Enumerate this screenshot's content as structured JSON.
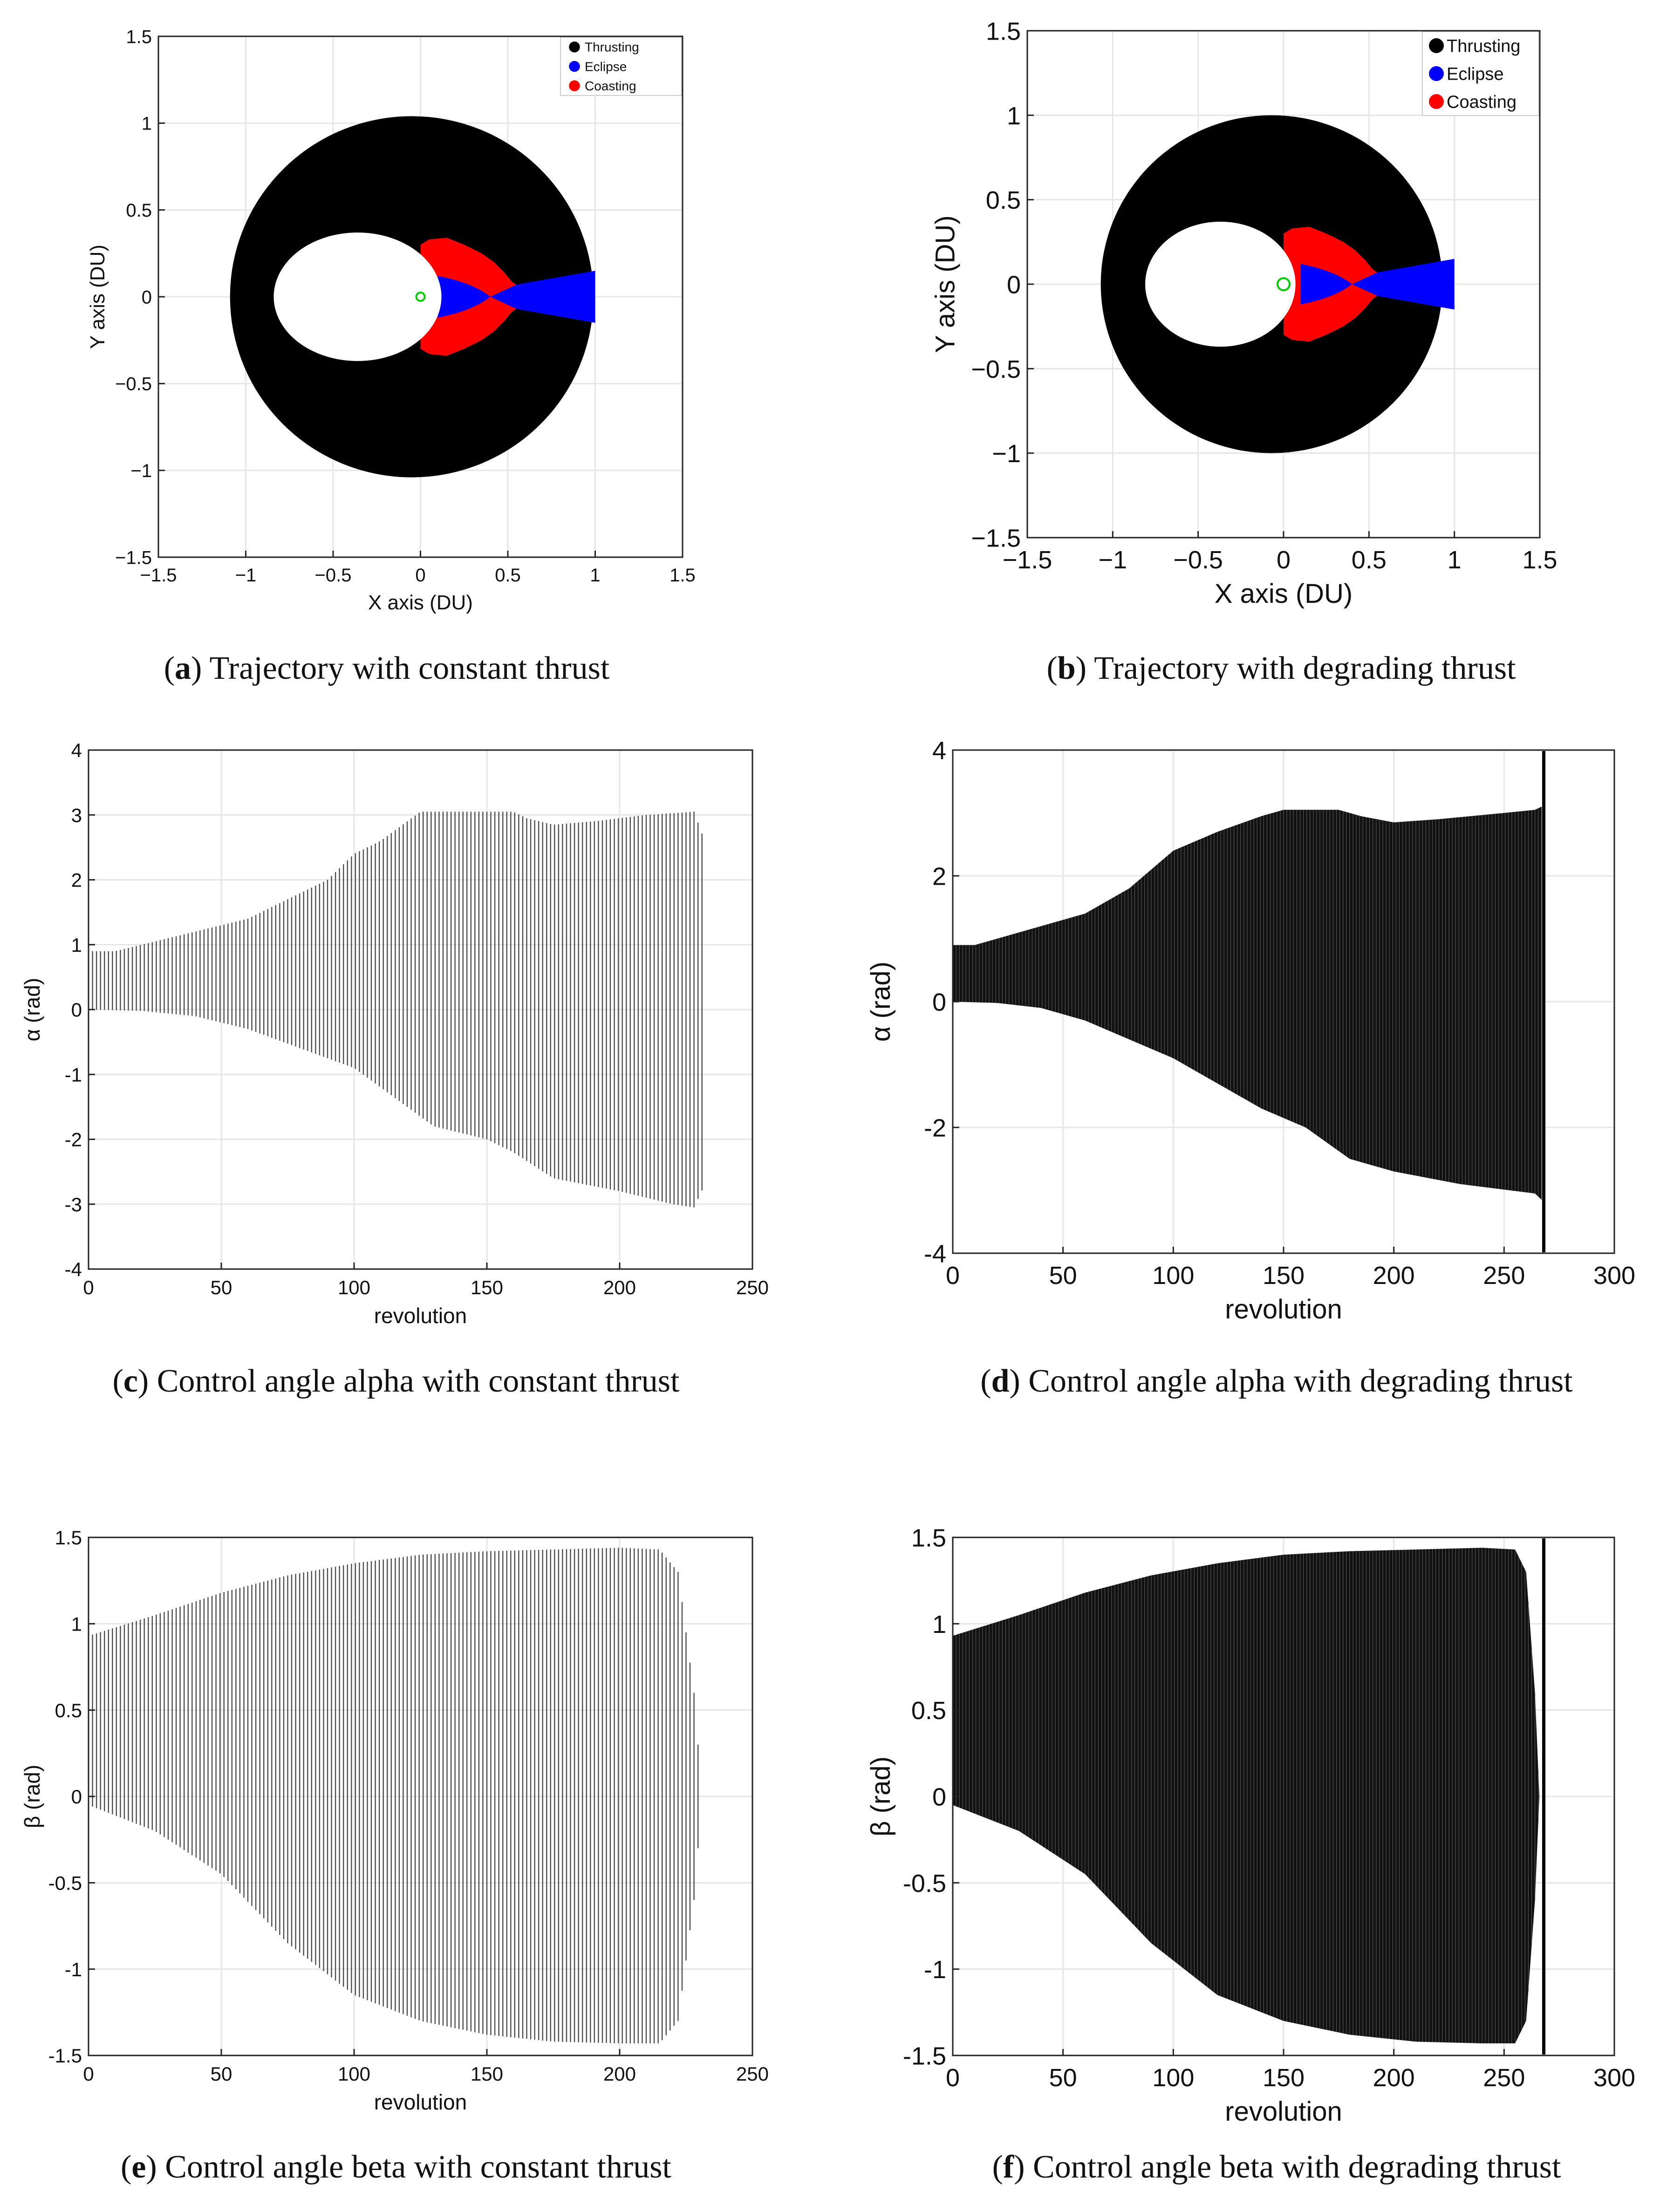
{
  "colors": {
    "thrust": "#000000",
    "eclipse": "#0000ff",
    "coast": "#ff0000",
    "center": "#00cc00",
    "grid": "#e6e6e6",
    "light_fill": "#4a4a4a"
  },
  "captions": {
    "a": {
      "letter": "a",
      "text": " Trajectory with constant thrust"
    },
    "b": {
      "letter": "b",
      "text": " Trajectory with degrading thrust"
    },
    "c": {
      "letter": "c",
      "text": " Control angle alpha with constant thrust"
    },
    "d": {
      "letter": "d",
      "text": " Control angle alpha with degrading thrust"
    },
    "e": {
      "letter": "e",
      "text": " Control angle beta with constant thrust"
    },
    "f": {
      "letter": "f",
      "text": " Control angle beta with degrading thrust"
    }
  },
  "chart_data": [
    {
      "id": "a",
      "type": "scatter",
      "title": "",
      "xlabel": "X axis (DU)",
      "ylabel": "Y axis (DU)",
      "xlim": [
        -1.5,
        1.5
      ],
      "ylim": [
        -1.5,
        1.5
      ],
      "xticks": [
        -1.5,
        -1,
        -0.5,
        0,
        0.5,
        1,
        1.5
      ],
      "yticks": [
        -1.5,
        -1,
        -0.5,
        0,
        0.5,
        1,
        1.5
      ],
      "xtick_labels": [
        "−1.5",
        "−1",
        "−0.5",
        "0",
        "0.5",
        "1",
        "1.5"
      ],
      "ytick_labels": [
        "−1.5",
        "−1",
        "−0.5",
        "0",
        "0.5",
        "1",
        "1.5"
      ],
      "legend": [
        "Thrusting",
        "Eclipse",
        "Coasting"
      ],
      "legend_position": "top-right",
      "grid": true,
      "orbit": {
        "outer_center": [
          -0.05,
          0
        ],
        "outer_radius": 1.04,
        "inner_center": [
          -0.36,
          0
        ],
        "inner_rx": 0.48,
        "inner_ry": 0.37,
        "center_point": [
          0,
          0
        ]
      }
    },
    {
      "id": "b",
      "type": "scatter",
      "title": "",
      "xlabel": "X axis (DU)",
      "ylabel": "Y axis (DU)",
      "xlim": [
        -1.5,
        1.5
      ],
      "ylim": [
        -1.5,
        1.5
      ],
      "xticks": [
        -1.5,
        -1,
        -0.5,
        0,
        0.5,
        1,
        1.5
      ],
      "yticks": [
        -1.5,
        -1,
        -0.5,
        0,
        0.5,
        1,
        1.5
      ],
      "xtick_labels": [
        "−1.5",
        "−1",
        "−0.5",
        "0",
        "0.5",
        "1",
        "1.5"
      ],
      "ytick_labels": [
        "−1.5",
        "−1",
        "−0.5",
        "0",
        "0.5",
        "1",
        "1.5"
      ],
      "legend": [
        "Thrusting",
        "Eclipse",
        "Coasting"
      ],
      "legend_position": "top-right",
      "grid": true,
      "orbit": {
        "outer_center": [
          -0.07,
          0
        ],
        "outer_radius": 1.0,
        "inner_center": [
          -0.37,
          0
        ],
        "inner_rx": 0.44,
        "inner_ry": 0.37,
        "center_point": [
          0,
          0
        ]
      }
    },
    {
      "id": "c",
      "type": "line",
      "title": "",
      "xlabel": "revolution",
      "ylabel": "α (rad)",
      "xlim": [
        0,
        250
      ],
      "ylim": [
        -4,
        4
      ],
      "xticks": [
        0,
        50,
        100,
        150,
        200,
        250
      ],
      "yticks": [
        -4,
        -3,
        -2,
        -1,
        0,
        1,
        2,
        3,
        4
      ],
      "xtick_labels": [
        "0",
        "50",
        "100",
        "150",
        "200",
        "250"
      ],
      "ytick_labels": [
        "-4",
        "-3",
        "-2",
        "-1",
        "0",
        "1",
        "2",
        "3",
        "4"
      ],
      "grid": true,
      "style": "light",
      "end_revolution": 232,
      "upper_envelope": [
        [
          0,
          0.9
        ],
        [
          10,
          0.9
        ],
        [
          20,
          1.0
        ],
        [
          30,
          1.1
        ],
        [
          40,
          1.2
        ],
        [
          50,
          1.3
        ],
        [
          60,
          1.4
        ],
        [
          70,
          1.6
        ],
        [
          80,
          1.8
        ],
        [
          90,
          2.0
        ],
        [
          100,
          2.4
        ],
        [
          110,
          2.6
        ],
        [
          120,
          2.9
        ],
        [
          125,
          3.05
        ],
        [
          160,
          3.05
        ],
        [
          165,
          2.95
        ],
        [
          175,
          2.85
        ],
        [
          190,
          2.9
        ],
        [
          210,
          3.0
        ],
        [
          228,
          3.05
        ],
        [
          232,
          2.6
        ]
      ],
      "lower_envelope": [
        [
          0,
          0.0
        ],
        [
          20,
          -0.02
        ],
        [
          40,
          -0.1
        ],
        [
          60,
          -0.3
        ],
        [
          80,
          -0.6
        ],
        [
          100,
          -0.9
        ],
        [
          110,
          -1.2
        ],
        [
          120,
          -1.5
        ],
        [
          130,
          -1.8
        ],
        [
          150,
          -2.0
        ],
        [
          160,
          -2.2
        ],
        [
          175,
          -2.6
        ],
        [
          200,
          -2.8
        ],
        [
          220,
          -3.0
        ],
        [
          228,
          -3.05
        ],
        [
          232,
          -2.7
        ]
      ]
    },
    {
      "id": "d",
      "type": "line",
      "title": "",
      "xlabel": "revolution",
      "ylabel": "α (rad)",
      "xlim": [
        0,
        300
      ],
      "ylim": [
        -4,
        4
      ],
      "xticks": [
        0,
        50,
        100,
        150,
        200,
        250,
        300
      ],
      "yticks": [
        -4,
        -2,
        0,
        2,
        4
      ],
      "xtick_labels": [
        "0",
        "50",
        "100",
        "150",
        "200",
        "250",
        "300"
      ],
      "ytick_labels": [
        "-4",
        "-2",
        "0",
        "2",
        "4"
      ],
      "grid": true,
      "style": "dark",
      "end_revolution": 267,
      "upper_envelope": [
        [
          0,
          0.9
        ],
        [
          10,
          0.9
        ],
        [
          20,
          1.0
        ],
        [
          30,
          1.1
        ],
        [
          40,
          1.2
        ],
        [
          50,
          1.3
        ],
        [
          60,
          1.4
        ],
        [
          70,
          1.6
        ],
        [
          80,
          1.8
        ],
        [
          100,
          2.4
        ],
        [
          120,
          2.7
        ],
        [
          140,
          2.95
        ],
        [
          150,
          3.05
        ],
        [
          175,
          3.05
        ],
        [
          185,
          2.95
        ],
        [
          200,
          2.85
        ],
        [
          220,
          2.9
        ],
        [
          250,
          3.0
        ],
        [
          264,
          3.05
        ],
        [
          267,
          3.1
        ]
      ],
      "lower_envelope": [
        [
          0,
          0.0
        ],
        [
          20,
          -0.02
        ],
        [
          40,
          -0.1
        ],
        [
          60,
          -0.3
        ],
        [
          80,
          -0.6
        ],
        [
          100,
          -0.9
        ],
        [
          120,
          -1.3
        ],
        [
          140,
          -1.7
        ],
        [
          160,
          -2.0
        ],
        [
          180,
          -2.5
        ],
        [
          200,
          -2.7
        ],
        [
          230,
          -2.9
        ],
        [
          264,
          -3.05
        ],
        [
          267,
          -3.15
        ]
      ]
    },
    {
      "id": "e",
      "type": "line",
      "title": "",
      "xlabel": "revolution",
      "ylabel": "β (rad)",
      "xlim": [
        0,
        250
      ],
      "ylim": [
        -1.5,
        1.5
      ],
      "xticks": [
        0,
        50,
        100,
        150,
        200,
        250
      ],
      "yticks": [
        -1.5,
        -1,
        -0.5,
        0,
        0.5,
        1,
        1.5
      ],
      "xtick_labels": [
        "0",
        "50",
        "100",
        "150",
        "200",
        "250"
      ],
      "ytick_labels": [
        "-1.5",
        "-1",
        "-0.5",
        "0",
        "0.5",
        "1",
        "1.5"
      ],
      "grid": true,
      "style": "light",
      "end_revolution": 232,
      "upper_envelope": [
        [
          0,
          0.93
        ],
        [
          25,
          1.05
        ],
        [
          50,
          1.18
        ],
        [
          75,
          1.28
        ],
        [
          100,
          1.35
        ],
        [
          125,
          1.4
        ],
        [
          150,
          1.42
        ],
        [
          175,
          1.43
        ],
        [
          200,
          1.44
        ],
        [
          215,
          1.43
        ],
        [
          222,
          1.3
        ],
        [
          228,
          0.6
        ],
        [
          231,
          0.0
        ]
      ],
      "lower_envelope": [
        [
          0,
          -0.05
        ],
        [
          25,
          -0.2
        ],
        [
          50,
          -0.45
        ],
        [
          75,
          -0.85
        ],
        [
          100,
          -1.15
        ],
        [
          125,
          -1.3
        ],
        [
          150,
          -1.38
        ],
        [
          175,
          -1.42
        ],
        [
          200,
          -1.43
        ],
        [
          215,
          -1.43
        ],
        [
          222,
          -1.3
        ],
        [
          228,
          -0.6
        ],
        [
          231,
          0.0
        ]
      ]
    },
    {
      "id": "f",
      "type": "line",
      "title": "",
      "xlabel": "revolution",
      "ylabel": "β (rad)",
      "xlim": [
        0,
        300
      ],
      "ylim": [
        -1.5,
        1.5
      ],
      "xticks": [
        0,
        50,
        100,
        150,
        200,
        250,
        300
      ],
      "yticks": [
        -1.5,
        -1,
        -0.5,
        0,
        0.5,
        1,
        1.5
      ],
      "xtick_labels": [
        "0",
        "50",
        "100",
        "150",
        "200",
        "250",
        "300"
      ],
      "ytick_labels": [
        "-1.5",
        "-1",
        "-0.5",
        "0",
        "0.5",
        "1",
        "1.5"
      ],
      "grid": true,
      "style": "dark",
      "end_revolution": 267,
      "upper_envelope": [
        [
          0,
          0.93
        ],
        [
          30,
          1.05
        ],
        [
          60,
          1.18
        ],
        [
          90,
          1.28
        ],
        [
          120,
          1.35
        ],
        [
          150,
          1.4
        ],
        [
          180,
          1.42
        ],
        [
          210,
          1.43
        ],
        [
          240,
          1.44
        ],
        [
          255,
          1.43
        ],
        [
          260,
          1.3
        ],
        [
          264,
          0.6
        ],
        [
          266,
          0.0
        ]
      ],
      "lower_envelope": [
        [
          0,
          -0.05
        ],
        [
          30,
          -0.2
        ],
        [
          60,
          -0.45
        ],
        [
          90,
          -0.85
        ],
        [
          120,
          -1.15
        ],
        [
          150,
          -1.3
        ],
        [
          180,
          -1.38
        ],
        [
          210,
          -1.42
        ],
        [
          240,
          -1.43
        ],
        [
          255,
          -1.43
        ],
        [
          260,
          -1.3
        ],
        [
          264,
          -0.6
        ],
        [
          266,
          0.0
        ]
      ]
    }
  ]
}
